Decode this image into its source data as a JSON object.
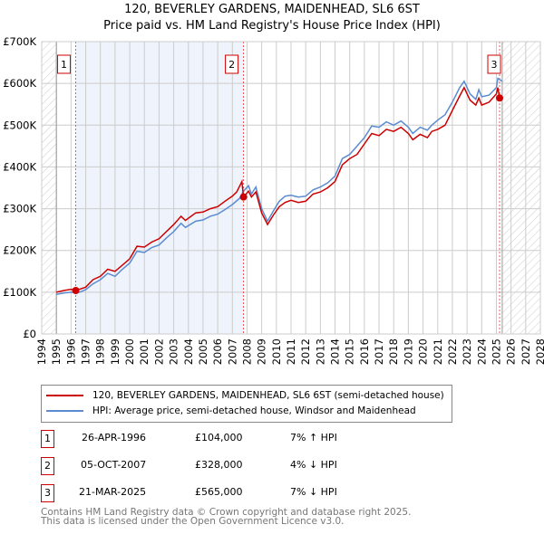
{
  "title": "120, BEVERLEY GARDENS, MAIDENHEAD, SL6 6ST",
  "subtitle": "Price paid vs. HM Land Registry's House Price Index (HPI)",
  "chart_data": {
    "type": "line",
    "title": "120, BEVERLEY GARDENS, MAIDENHEAD, SL6 6ST",
    "subtitle": "Price paid vs. HM Land Registry's House Price Index (HPI)",
    "xlim": [
      1994,
      2028
    ],
    "ylim": [
      0,
      700000
    ],
    "x_ticks": [
      "1994",
      "1995",
      "1996",
      "1997",
      "1998",
      "1999",
      "2000",
      "2001",
      "2002",
      "2003",
      "2004",
      "2005",
      "2006",
      "2007",
      "2008",
      "2009",
      "2010",
      "2011",
      "2012",
      "2013",
      "2014",
      "2015",
      "2016",
      "2017",
      "2018",
      "2019",
      "2020",
      "2021",
      "2022",
      "2023",
      "2024",
      "2025",
      "2026",
      "2027",
      "2028"
    ],
    "y_ticks": [
      {
        "v": 0,
        "label": "£0"
      },
      {
        "v": 100000,
        "label": "£100K"
      },
      {
        "v": 200000,
        "label": "£200K"
      },
      {
        "v": 300000,
        "label": "£300K"
      },
      {
        "v": 400000,
        "label": "£400K"
      },
      {
        "v": 500000,
        "label": "£500K"
      },
      {
        "v": 600000,
        "label": "£600K"
      },
      {
        "v": 700000,
        "label": "£700K"
      }
    ],
    "grid": true,
    "series": [
      {
        "name": "120, BEVERLEY GARDENS, MAIDENHEAD, SL6 6ST (semi-detached house)",
        "color": "#cc0000",
        "x": [
          1995,
          1995.5,
          1996,
          1996.32,
          1997,
          1997.5,
          1998,
          1998.5,
          1999,
          1999.5,
          2000,
          2000.5,
          2001,
          2001.5,
          2002,
          2002.5,
          2003,
          2003.5,
          2003.8,
          2004.5,
          2005,
          2005.5,
          2006,
          2006.5,
          2007,
          2007.3,
          2007.65,
          2007.76,
          2008.1,
          2008.3,
          2008.6,
          2009,
          2009.4,
          2009.8,
          2010.2,
          2010.6,
          2011,
          2011.5,
          2012,
          2012.5,
          2013,
          2013.5,
          2014,
          2014.5,
          2015,
          2015.5,
          2016,
          2016.5,
          2017,
          2017.5,
          2018,
          2018.5,
          2019,
          2019.3,
          2019.8,
          2020.3,
          2020.6,
          2021,
          2021.5,
          2022,
          2022.5,
          2022.8,
          2023.2,
          2023.6,
          2023.8,
          2024,
          2024.5,
          2025,
          2025.1,
          2025.22
        ],
        "y": [
          100000,
          104000,
          107000,
          104000,
          112000,
          130000,
          138000,
          155000,
          150000,
          165000,
          180000,
          210000,
          208000,
          220000,
          228000,
          245000,
          262000,
          282000,
          272000,
          290000,
          292000,
          300000,
          305000,
          318000,
          330000,
          340000,
          365000,
          328000,
          342000,
          328000,
          340000,
          290000,
          262000,
          285000,
          305000,
          315000,
          320000,
          315000,
          318000,
          335000,
          340000,
          350000,
          365000,
          405000,
          420000,
          430000,
          455000,
          480000,
          475000,
          490000,
          485000,
          495000,
          480000,
          465000,
          478000,
          470000,
          485000,
          490000,
          500000,
          535000,
          570000,
          590000,
          560000,
          548000,
          565000,
          548000,
          555000,
          575000,
          590000,
          565000
        ]
      },
      {
        "name": "HPI: Average price, semi-detached house, Windsor and Maidenhead",
        "color": "#5b8bd0",
        "x": [
          1995,
          1995.5,
          1996,
          1996.5,
          1997,
          1997.5,
          1998,
          1998.5,
          1999,
          1999.5,
          2000,
          2000.5,
          2001,
          2001.5,
          2002,
          2002.5,
          2003,
          2003.5,
          2003.8,
          2004.5,
          2005,
          2005.5,
          2006,
          2006.5,
          2007,
          2007.5,
          2007.76,
          2008.1,
          2008.3,
          2008.6,
          2009,
          2009.4,
          2009.8,
          2010.2,
          2010.6,
          2011,
          2011.5,
          2012,
          2012.5,
          2013,
          2013.5,
          2014,
          2014.5,
          2015,
          2015.5,
          2016,
          2016.5,
          2017,
          2017.5,
          2018,
          2018.5,
          2019,
          2019.3,
          2019.8,
          2020.3,
          2020.6,
          2021,
          2021.5,
          2022,
          2022.5,
          2022.8,
          2023.2,
          2023.6,
          2023.8,
          2024,
          2024.5,
          2025,
          2025.1,
          2025.4
        ],
        "y": [
          95000,
          98000,
          100000,
          99000,
          106000,
          120000,
          130000,
          145000,
          138000,
          155000,
          170000,
          198000,
          195000,
          207000,
          213000,
          230000,
          245000,
          265000,
          255000,
          270000,
          273000,
          282000,
          287000,
          298000,
          310000,
          325000,
          342000,
          355000,
          335000,
          352000,
          300000,
          270000,
          295000,
          318000,
          330000,
          332000,
          328000,
          330000,
          345000,
          352000,
          362000,
          378000,
          420000,
          430000,
          450000,
          470000,
          498000,
          495000,
          508000,
          500000,
          510000,
          495000,
          480000,
          495000,
          488000,
          500000,
          512000,
          525000,
          555000,
          590000,
          605000,
          575000,
          562000,
          585000,
          568000,
          572000,
          590000,
          612000,
          605000
        ]
      }
    ],
    "sales": [
      {
        "n": "1",
        "x": 1996.32,
        "y": 104000
      },
      {
        "n": "2",
        "x": 2007.76,
        "y": 328000
      },
      {
        "n": "3",
        "x": 2025.22,
        "y": 565000
      }
    ]
  },
  "legend": {
    "items": [
      {
        "label": "120, BEVERLEY GARDENS, MAIDENHEAD, SL6 6ST (semi-detached house)",
        "color": "#cc0000"
      },
      {
        "label": "HPI: Average price, semi-detached house, Windsor and Maidenhead",
        "color": "#5b8bd0"
      }
    ]
  },
  "transactions": [
    {
      "n": "1",
      "date": "26-APR-1996",
      "price": "£104,000",
      "hpi": "7% ↑ HPI"
    },
    {
      "n": "2",
      "date": "05-OCT-2007",
      "price": "£328,000",
      "hpi": "4% ↓ HPI"
    },
    {
      "n": "3",
      "date": "21-MAR-2025",
      "price": "£565,000",
      "hpi": "7% ↓ HPI"
    }
  ],
  "footer": {
    "line1": "Contains HM Land Registry data © Crown copyright and database right 2025.",
    "line2": "This data is licensed under the Open Government Licence v3.0."
  }
}
